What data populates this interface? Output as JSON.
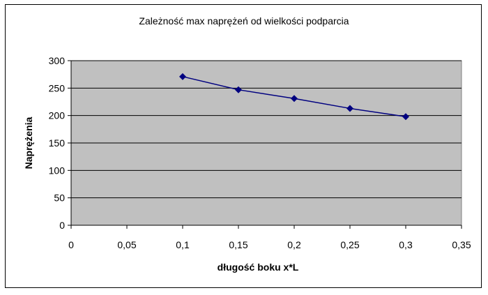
{
  "chart_data": {
    "type": "line",
    "title": "Zależność max naprężeń od wielkości podparcia",
    "xlabel": "długość boku x*L",
    "ylabel": "Naprężenia",
    "xlim": [
      0,
      0.35
    ],
    "ylim": [
      0,
      300
    ],
    "x_ticks": [
      "0",
      "0,05",
      "0,1",
      "0,15",
      "0,2",
      "0,25",
      "0,3",
      "0,35"
    ],
    "y_ticks": [
      "0",
      "50",
      "100",
      "150",
      "200",
      "250",
      "300"
    ],
    "grid": "horizontal",
    "plot_background": "#c0c0c0",
    "series": [
      {
        "color": "#000080",
        "marker": "diamond",
        "x": [
          0.1,
          0.15,
          0.2,
          0.25,
          0.3
        ],
        "y": [
          271,
          247,
          231,
          213,
          198
        ]
      }
    ]
  }
}
